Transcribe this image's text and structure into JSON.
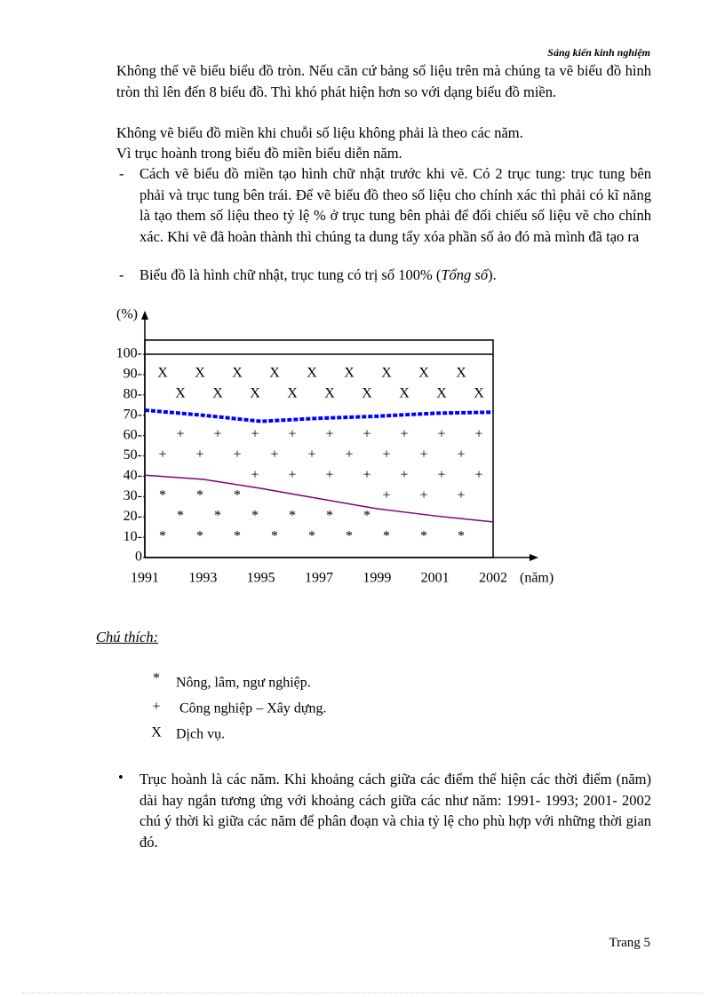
{
  "header": "Sáng kiến kinh nghiệm",
  "paragraphs": [
    "Không thể vẽ biểu biểu đồ tròn. Nếu căn cứ bảng số liệu trên mà chúng ta vẽ biểu đồ hình tròn thì lên đến 8 biểu đồ. Thì khó phát hiện hơn so với dạng biểu đồ miền.",
    "Không vẽ biểu đồ miền khi chuỗi số liệu không phải là theo các năm.",
    "Vì trục hoành trong biểu đồ miền biểu diễn năm."
  ],
  "list": [
    {
      "marker": "-",
      "text": "Cách vẽ biểu đồ miền tạo hình chữ nhật trước khi vẽ. Có 2 trục tung: trục tung bên phải và trục tung bên trái. Để vẽ biểu đồ theo số liệu cho chính xác thì phải có kĩ năng là tạo them số liệu theo tỷ lệ % ở trục tung bên phải để đối chiếu số liệu vẽ cho chính xác. Khi vẽ đã hoàn thành thì chúng ta dung tẩy xóa phần số ảo đó mà mình đã tạo ra"
    },
    {
      "marker": "-",
      "text": "Biểu đồ là hình chữ nhật, trục tung có trị số 100% (",
      "italic": "Tổng số",
      "after": ")."
    }
  ],
  "chart": {
    "type": "area",
    "y_label": "(%)",
    "x_label": "(năm)",
    "categories": [
      "1991",
      "1993",
      "1995",
      "1997",
      "1999",
      "2001",
      "2002"
    ],
    "series": [
      {
        "name": "Nông, lâm, ngư nghiệp.",
        "symbol": "*",
        "color": "#800080",
        "values": [
          40.5,
          38.5,
          34,
          29,
          24,
          20.5,
          17.5
        ]
      },
      {
        "name": "Công nghiệp – Xây dựng.",
        "symbol": "+",
        "color": "#0000ff",
        "values": [
          32,
          31.5,
          33,
          39.5,
          45.5,
          50.5,
          54
        ]
      },
      {
        "name": "Dịch vụ.",
        "symbol": "X",
        "color": "#000000",
        "values": [
          27.5,
          30,
          33,
          31.5,
          30.5,
          29,
          28.5
        ]
      }
    ],
    "ylim": [
      0,
      107
    ],
    "yticks": [
      0,
      {
        "value": 10,
        "label": "10-"
      },
      {
        "value": 20,
        "label": "20-"
      },
      {
        "value": 30,
        "label": "30-"
      },
      {
        "value": 40,
        "label": "40-"
      },
      {
        "value": 50,
        "label": "50-"
      },
      {
        "value": 60,
        "label": "60-"
      },
      {
        "value": 70,
        "label": "70-"
      },
      {
        "value": 80,
        "label": "80-"
      },
      {
        "value": 90,
        "label": "90-"
      },
      {
        "value": 100,
        "label": "100-"
      }
    ]
  },
  "legend_title": "Chú thích:",
  "bullet": "Trục hoành là các năm. Khi khoảng cách giữa các điểm thể hiện các thời điểm (năm) dài hay ngắn tương ứng với khoảng cách giữa các như năm: 1991- 1993; 2001- 2002 chú ý thời kì giữa các năm để phân đoạn và chia tỷ lệ cho phù hợp với những thời gian đó.",
  "footer": "Trang 5"
}
